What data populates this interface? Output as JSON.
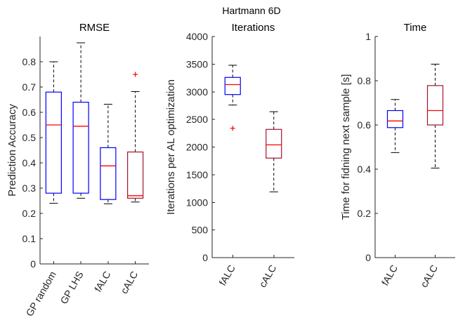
{
  "figure_title": "Hartmann  6D",
  "chart_data": [
    {
      "type": "box",
      "title": "RMSE",
      "xlabel": "",
      "ylabel": "Prediction Accuracy",
      "ylim": [
        0,
        0.9
      ],
      "yticks": [
        0,
        0.1,
        0.2,
        0.3,
        0.4,
        0.5,
        0.6,
        0.7,
        0.8
      ],
      "ytick_labels": [
        "0",
        "0.1",
        "0.2",
        "0.3",
        "0.4",
        "0.5",
        "0.6",
        "0.7",
        "0.8"
      ],
      "grid": false,
      "categories": [
        "GP random",
        "GP LHS",
        "fALC",
        "cALC"
      ],
      "boxes": [
        {
          "whisker_low": 0.24,
          "q1": 0.28,
          "median": 0.55,
          "q3": 0.68,
          "whisker_high": 0.8,
          "outliers": [],
          "color": "#0000ff"
        },
        {
          "whisker_low": 0.26,
          "q1": 0.28,
          "median": 0.545,
          "q3": 0.64,
          "whisker_high": 0.875,
          "outliers": [],
          "color": "#0000ff"
        },
        {
          "whisker_low": 0.238,
          "q1": 0.255,
          "median": 0.388,
          "q3": 0.46,
          "whisker_high": 0.632,
          "outliers": [],
          "color": "#0000ff"
        },
        {
          "whisker_low": 0.245,
          "q1": 0.26,
          "median": 0.27,
          "q3": 0.443,
          "whisker_high": 0.682,
          "outliers": [
            0.75
          ],
          "color": "#a2142f"
        }
      ]
    },
    {
      "type": "box",
      "title": "Iterations",
      "xlabel": "",
      "ylabel": "Iterations per AL optimization",
      "ylim": [
        0,
        4000
      ],
      "yticks": [
        0,
        500,
        1000,
        1500,
        2000,
        2500,
        3000,
        3500,
        4000
      ],
      "ytick_labels": [
        "0",
        "500",
        "1000",
        "1500",
        "2000",
        "2500",
        "3000",
        "3500",
        "4000"
      ],
      "grid": false,
      "categories": [
        "fALC",
        "cALC"
      ],
      "boxes": [
        {
          "whisker_low": 2760,
          "q1": 2950,
          "median": 3130,
          "q3": 3260,
          "whisker_high": 3480,
          "outliers": [
            2340
          ],
          "color": "#0000ff"
        },
        {
          "whisker_low": 1190,
          "q1": 1800,
          "median": 2040,
          "q3": 2320,
          "whisker_high": 2640,
          "outliers": [],
          "color": "#a2142f"
        }
      ]
    },
    {
      "type": "box",
      "title": "Time",
      "xlabel": "",
      "ylabel": "Time for fidning next sample [s]",
      "ylim": [
        0,
        1
      ],
      "yticks": [
        0,
        0.2,
        0.4,
        0.6,
        0.8,
        1
      ],
      "ytick_labels": [
        "0",
        "0.2",
        "0.4",
        "0.6",
        "0.8",
        "1"
      ],
      "grid": false,
      "categories": [
        "fALC",
        "cALC"
      ],
      "boxes": [
        {
          "whisker_low": 0.475,
          "q1": 0.588,
          "median": 0.618,
          "q3": 0.665,
          "whisker_high": 0.715,
          "outliers": [],
          "color": "#0000ff"
        },
        {
          "whisker_low": 0.405,
          "q1": 0.6,
          "median": 0.665,
          "q3": 0.778,
          "whisker_high": 0.875,
          "outliers": [],
          "color": "#a2142f"
        }
      ]
    }
  ]
}
